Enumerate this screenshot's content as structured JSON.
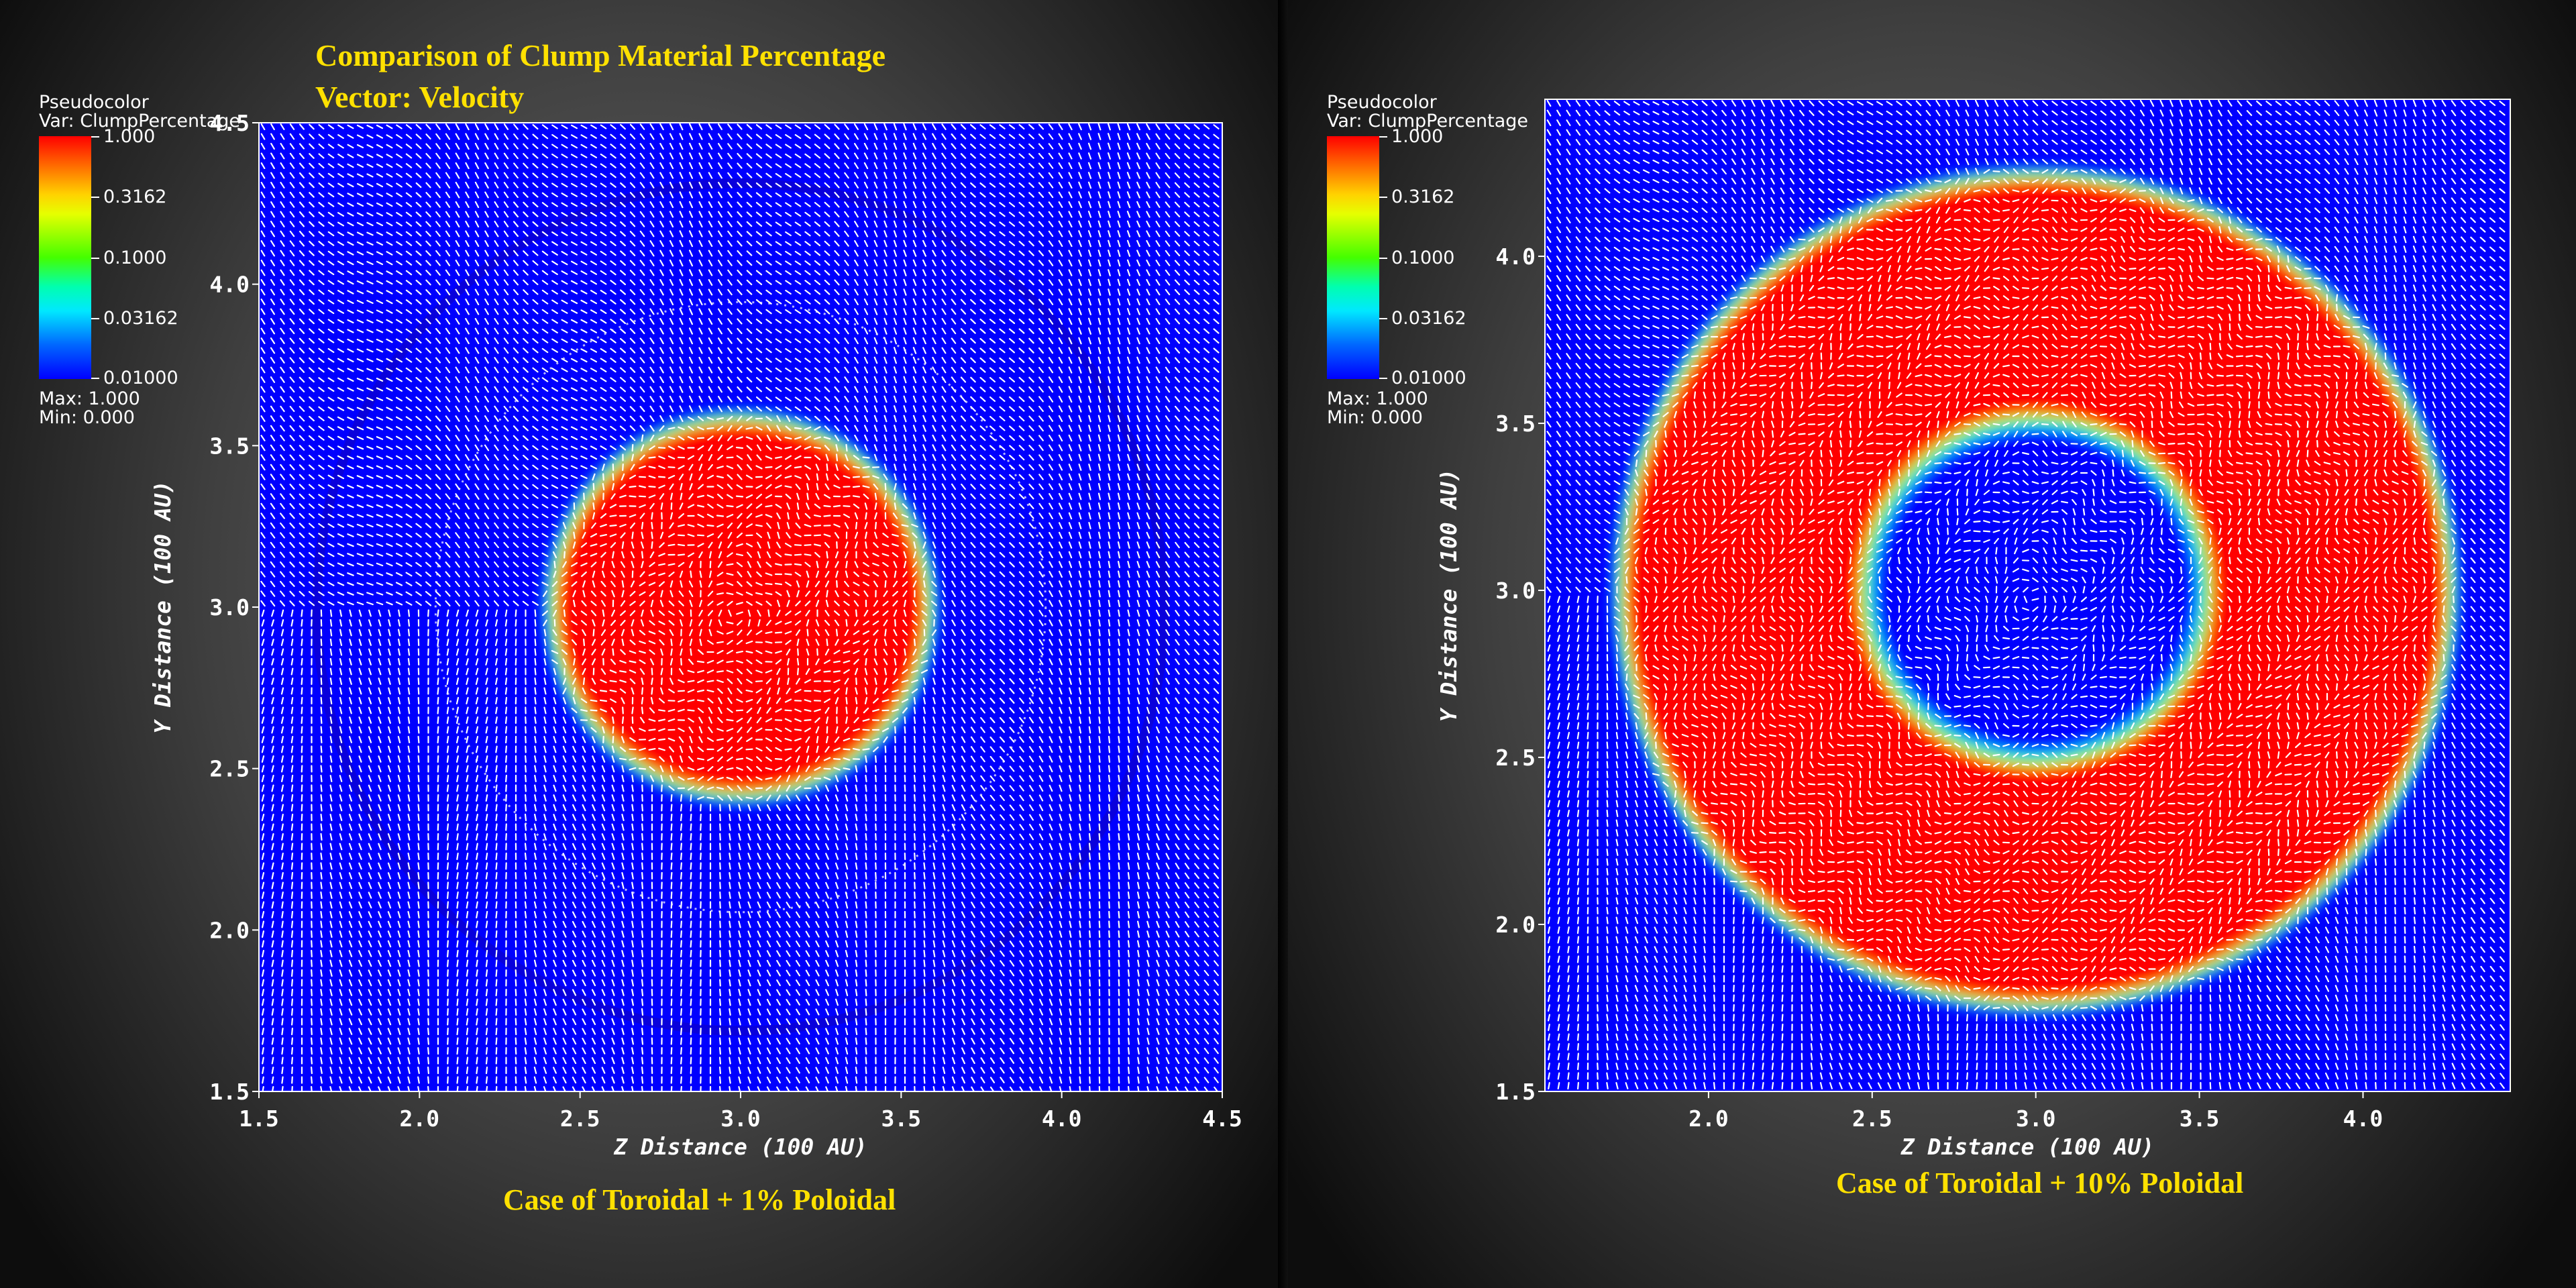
{
  "header": {
    "title_line1": "Comparison of Clump Material Percentage",
    "title_line2": "Vector: Velocity"
  },
  "colors": {
    "title_yellow": "#ffe100",
    "field_blue": "#0000ff",
    "clump_red": "#ff0000",
    "arrow_white": "#ffffff"
  },
  "legend": {
    "plot_type": "Pseudocolor",
    "var_label": "Var: ClumpPercentage",
    "ticks": [
      "1.000",
      "0.3162",
      "0.1000",
      "0.03162",
      "0.01000"
    ],
    "max_label": "Max:  1.000",
    "min_label": "Min:  0.000"
  },
  "chart_data": [
    {
      "type": "heatmap",
      "caption": "Case of Toroidal + 1% Poloidal",
      "xlabel": "Z Distance (100 AU)",
      "ylabel": "Y Distance (100 AU)",
      "xlim": [
        1.5,
        4.5
      ],
      "ylim": [
        1.5,
        4.5
      ],
      "xticks": [
        "1.5",
        "2.0",
        "2.5",
        "3.0",
        "3.5",
        "4.0",
        "4.5"
      ],
      "yticks": [
        "1.5",
        "2.0",
        "2.5",
        "3.0",
        "3.5",
        "4.0",
        "4.5"
      ],
      "colorbar_scale": "log",
      "colorbar_range": [
        0.01,
        1.0
      ],
      "clump_shape": "disk",
      "clump_center": [
        3.0,
        3.0
      ],
      "clump_outer_radius": 0.57,
      "clump_inner_radius": 0.0,
      "vector_field": "Velocity"
    },
    {
      "type": "heatmap",
      "caption": "Case of Toroidal + 10% Poloidal",
      "xlabel": "Z Distance (100 AU)",
      "ylabel": "Y Distance (100 AU)",
      "xlim": [
        1.5,
        4.45
      ],
      "ylim": [
        1.5,
        4.47
      ],
      "xticks": [
        "2.0",
        "2.5",
        "3.0",
        "3.5",
        "4.0"
      ],
      "yticks": [
        "1.5",
        "2.0",
        "2.5",
        "3.0",
        "3.5",
        "4.0"
      ],
      "colorbar_scale": "log",
      "colorbar_range": [
        0.01,
        1.0
      ],
      "clump_shape": "ring",
      "clump_center": [
        3.0,
        3.0
      ],
      "clump_outer_radius": 1.25,
      "clump_inner_radius": 0.49,
      "vector_field": "Velocity"
    }
  ]
}
